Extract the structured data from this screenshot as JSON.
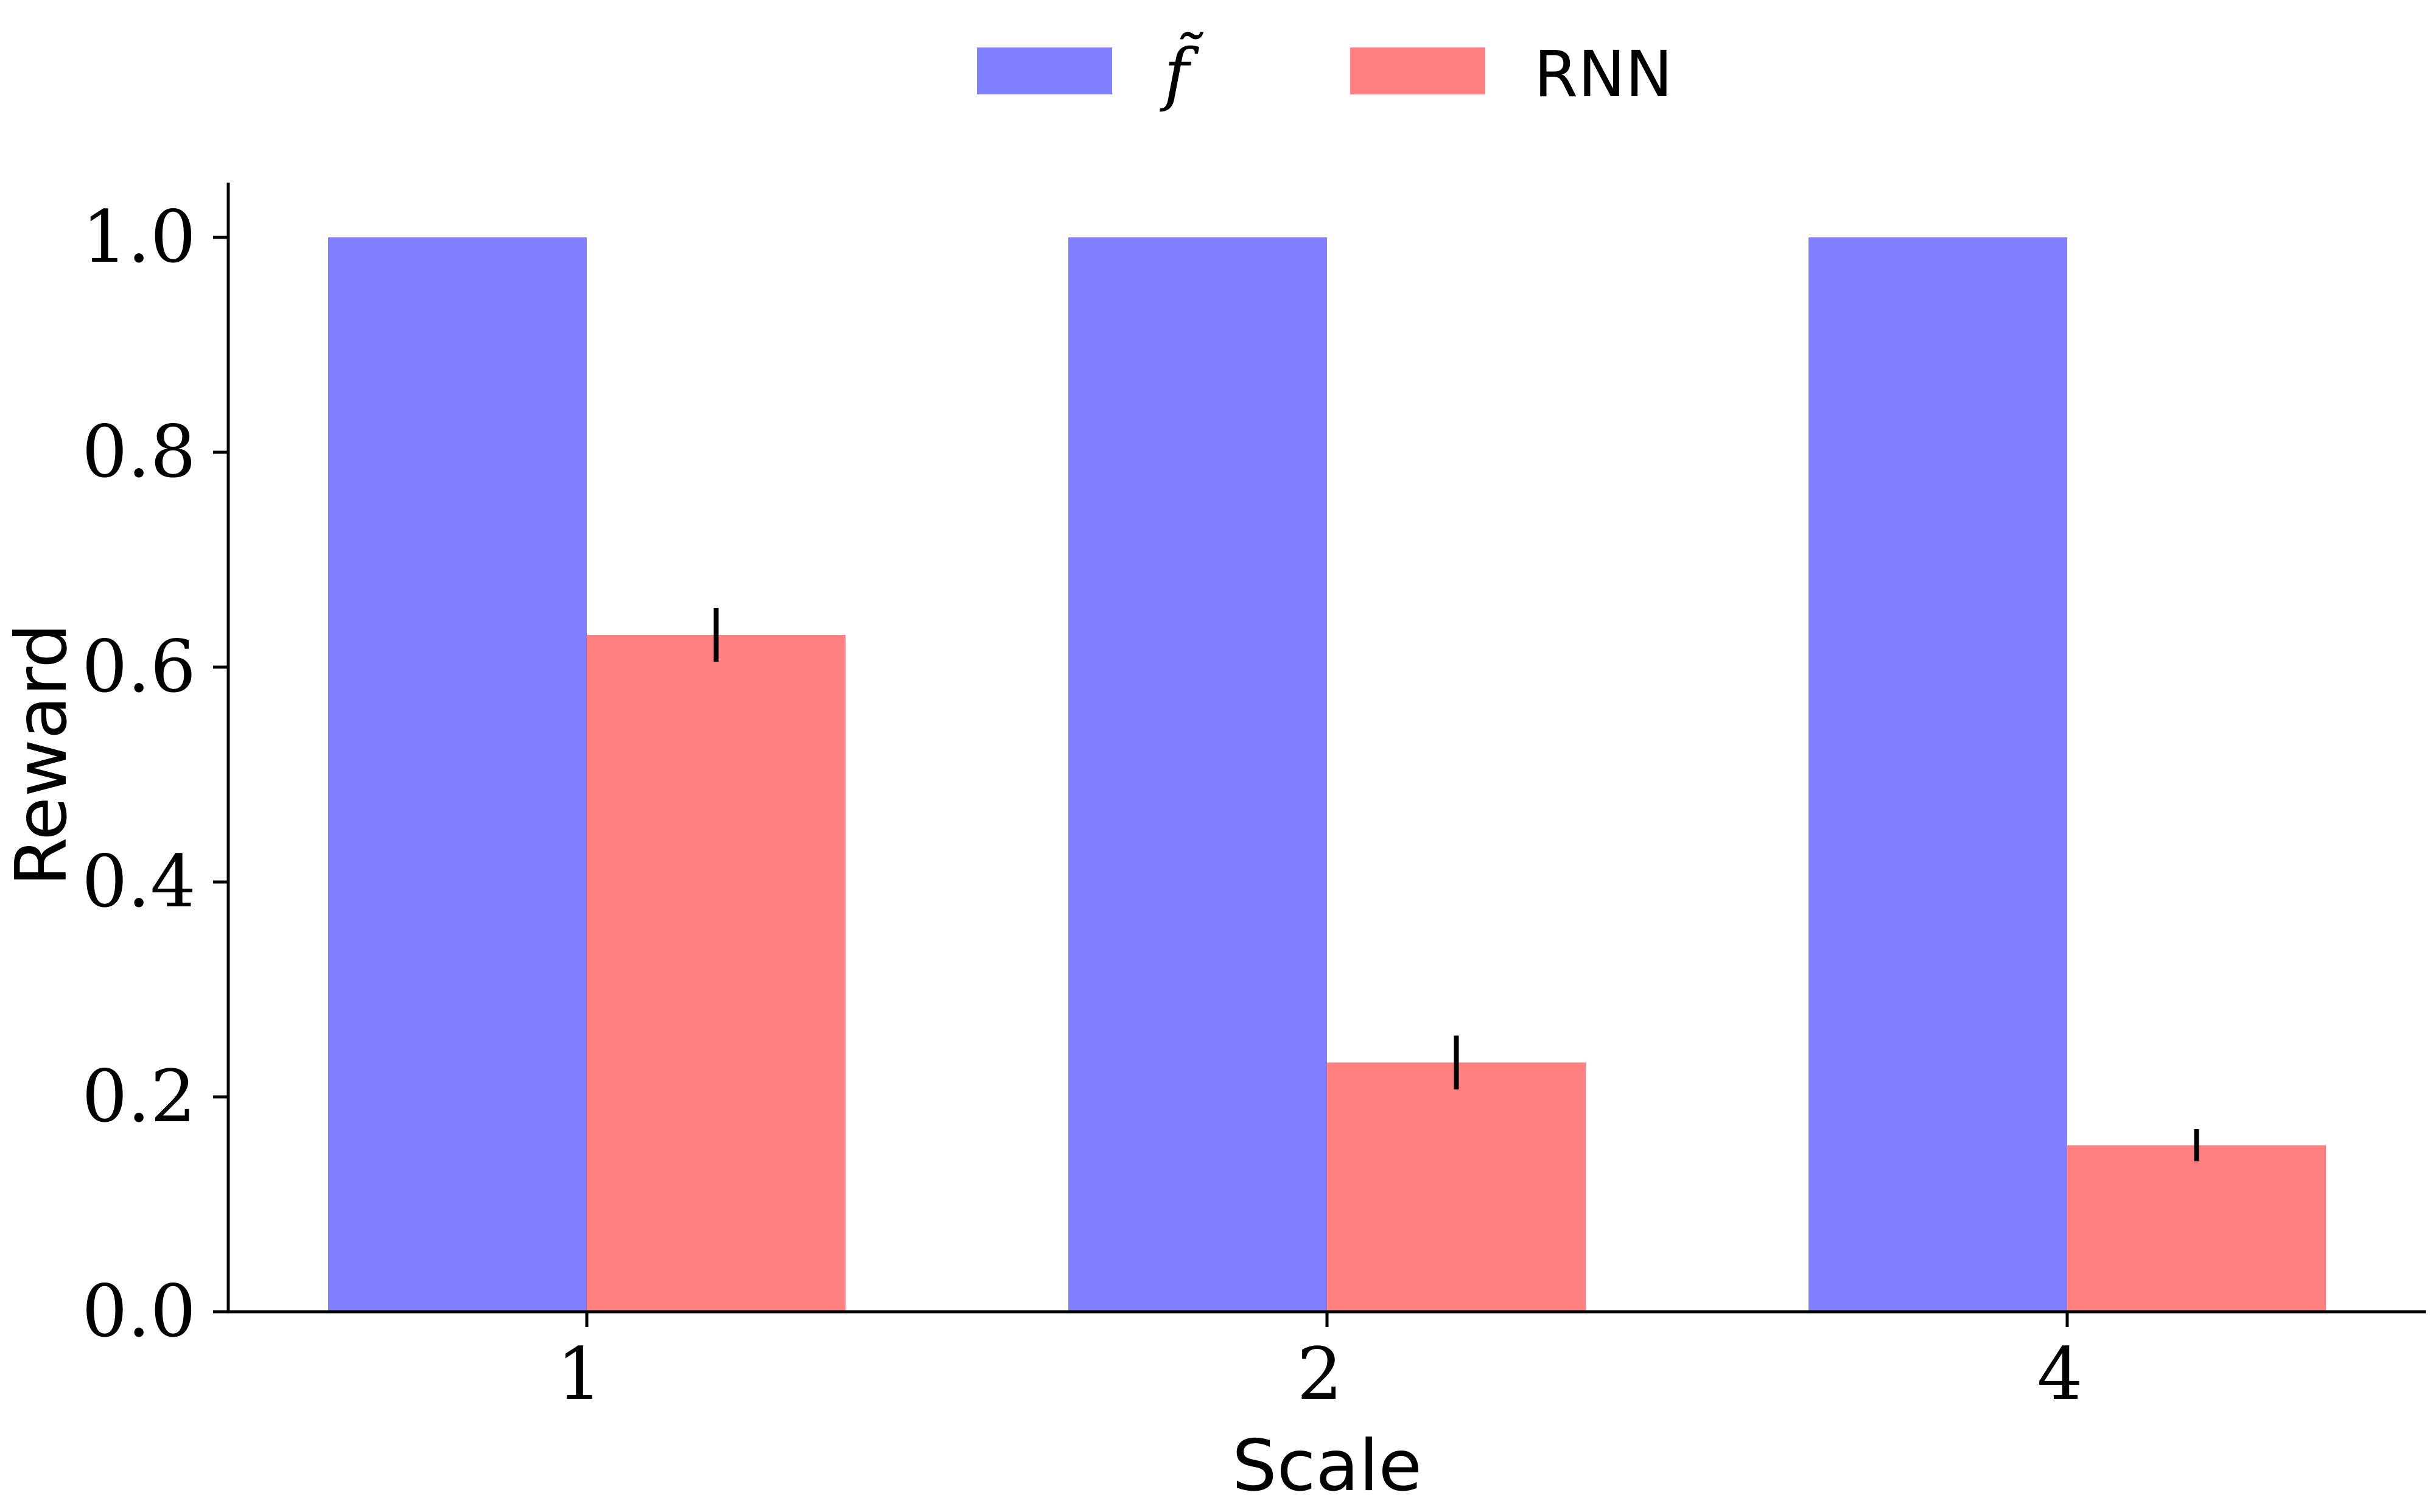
{
  "chart_data": {
    "type": "bar",
    "title": "",
    "xlabel": "Scale",
    "ylabel": "Reward",
    "categories": [
      "1",
      "2",
      "4"
    ],
    "ylim": [
      0,
      1.05
    ],
    "yticks": [
      "0.0",
      "0.2",
      "0.4",
      "0.6",
      "0.8",
      "1.0"
    ],
    "legend_placement": "top-center",
    "grid": false,
    "series": [
      {
        "name": "f̃",
        "color": "#8080ff",
        "values": [
          1.0,
          1.0,
          1.0
        ],
        "errors": [
          0,
          0,
          0
        ]
      },
      {
        "name": "RNN",
        "color": "#ff8080",
        "values": [
          0.63,
          0.232,
          0.155
        ],
        "errors": [
          0.025,
          0.025,
          0.015
        ]
      }
    ]
  }
}
